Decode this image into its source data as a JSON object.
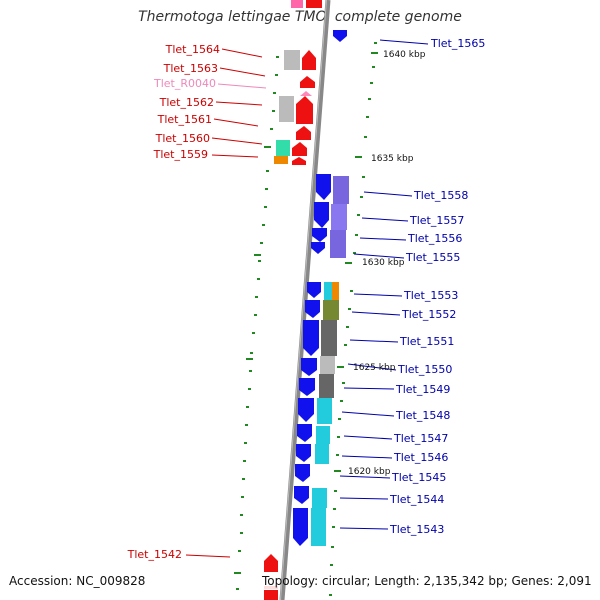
{
  "title": "Thermotoga lettingae TMO, complete genome",
  "footer": {
    "accession": "Accession: NC_009828",
    "summary": "Topology: circular; Length: 2,135,342 bp; Genes: 2,091"
  },
  "colors": {
    "left_label": "#cc0000",
    "right_label": "#0000aa",
    "rna_label": "#ee88bb",
    "tick": "#228822",
    "backbone": "#888888"
  },
  "ruler": [
    {
      "label": "1640 kbp"
    },
    {
      "label": "1635 kbp"
    },
    {
      "label": "1630 kbp"
    },
    {
      "label": "1625 kbp"
    },
    {
      "label": "1620 kbp"
    }
  ],
  "left_labels": [
    {
      "text": "Tlet_1564",
      "kind": "gene"
    },
    {
      "text": "Tlet_1563",
      "kind": "gene"
    },
    {
      "text": "Tlet_R0040",
      "kind": "rna"
    },
    {
      "text": "Tlet_1562",
      "kind": "gene"
    },
    {
      "text": "Tlet_1561",
      "kind": "gene"
    },
    {
      "text": "Tlet_1560",
      "kind": "gene"
    },
    {
      "text": "Tlet_1559",
      "kind": "gene"
    },
    {
      "text": "Tlet_1542",
      "kind": "gene"
    }
  ],
  "right_labels": [
    {
      "text": "Tlet_1565"
    },
    {
      "text": "Tlet_1558"
    },
    {
      "text": "Tlet_1557"
    },
    {
      "text": "Tlet_1556"
    },
    {
      "text": "Tlet_1555"
    },
    {
      "text": "Tlet_1553"
    },
    {
      "text": "Tlet_1552"
    },
    {
      "text": "Tlet_1551"
    },
    {
      "text": "Tlet_1550"
    },
    {
      "text": "Tlet_1549"
    },
    {
      "text": "Tlet_1548"
    },
    {
      "text": "Tlet_1547"
    },
    {
      "text": "Tlet_1546"
    },
    {
      "text": "Tlet_1545"
    },
    {
      "text": "Tlet_1544"
    },
    {
      "text": "Tlet_1543"
    }
  ]
}
